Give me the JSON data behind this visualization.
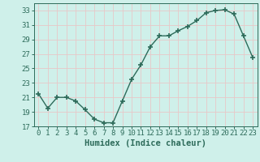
{
  "x": [
    0,
    1,
    2,
    3,
    4,
    5,
    6,
    7,
    8,
    9,
    10,
    11,
    12,
    13,
    14,
    15,
    16,
    17,
    18,
    19,
    20,
    21,
    22,
    23
  ],
  "y": [
    21.5,
    19.5,
    21.0,
    21.0,
    20.5,
    19.3,
    18.0,
    17.5,
    17.5,
    20.5,
    23.5,
    25.5,
    28.0,
    29.5,
    29.5,
    30.2,
    30.8,
    31.6,
    32.7,
    33.0,
    33.1,
    32.5,
    29.5,
    26.5
  ],
  "line_color": "#2d6b5a",
  "marker": "+",
  "marker_size": 4,
  "marker_lw": 1.2,
  "line_width": 1.0,
  "bg_color": "#cff0ea",
  "grid_color": "#e8c8c8",
  "xlabel": "Humidex (Indice chaleur)",
  "ylim": [
    17,
    34
  ],
  "xlim": [
    -0.5,
    23.5
  ],
  "yticks": [
    17,
    19,
    21,
    23,
    25,
    27,
    29,
    31,
    33
  ],
  "xticks": [
    0,
    1,
    2,
    3,
    4,
    5,
    6,
    7,
    8,
    9,
    10,
    11,
    12,
    13,
    14,
    15,
    16,
    17,
    18,
    19,
    20,
    21,
    22,
    23
  ],
  "tick_fontsize": 6.5,
  "xlabel_fontsize": 7.5
}
